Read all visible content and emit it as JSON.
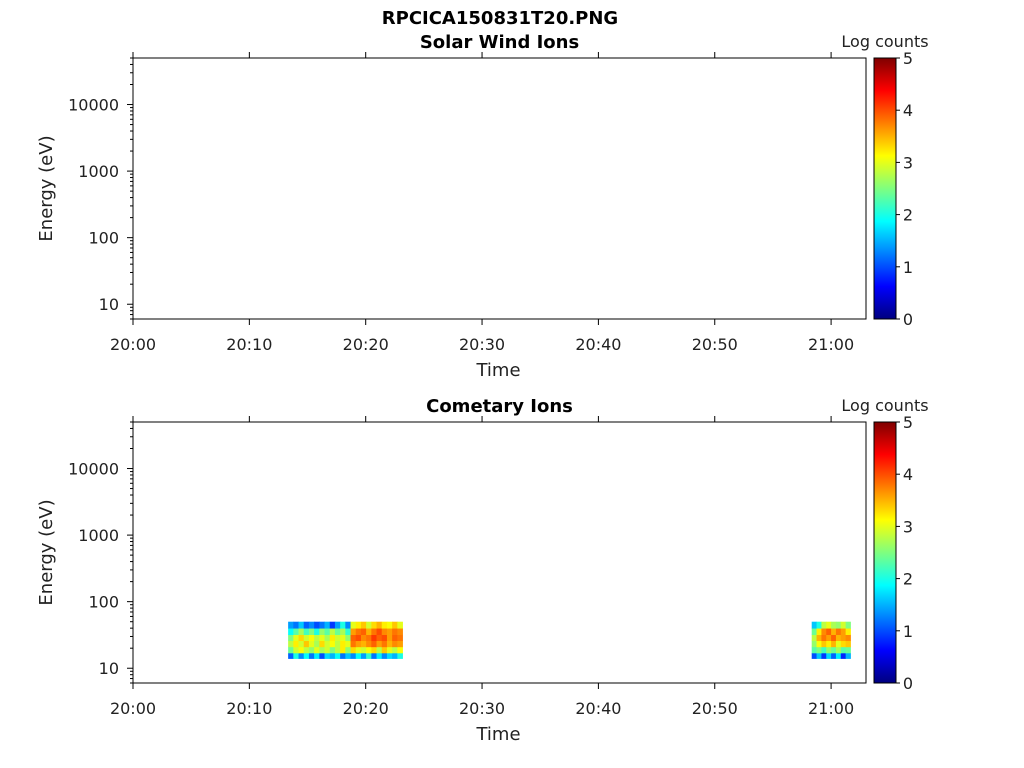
{
  "figure": {
    "title": "RPCICA150831T20.PNG"
  },
  "colors": {
    "colormap": "jet",
    "colormap_stops": [
      "#00007f",
      "#0000ff",
      "#007fff",
      "#00ffff",
      "#7fff7f",
      "#ffff00",
      "#ff7f00",
      "#ff0000",
      "#7f0000"
    ]
  },
  "chart_data": [
    {
      "type": "heatmap",
      "title": "Solar Wind Ions",
      "xlabel": "Time",
      "ylabel": "Energy (eV)",
      "y_scale": "log",
      "xlim": [
        "20:00",
        "21:03"
      ],
      "ylim": [
        6,
        50000
      ],
      "x_ticks": [
        "20:00",
        "20:10",
        "20:20",
        "20:30",
        "20:40",
        "20:50",
        "21:00"
      ],
      "y_ticks": [
        "10",
        "100",
        "1000",
        "10000"
      ],
      "colorbar": {
        "label": "Log counts",
        "range": [
          0,
          5
        ],
        "ticks": [
          "0",
          "1",
          "2",
          "3",
          "4",
          "5"
        ]
      },
      "blocks": []
    },
    {
      "type": "heatmap",
      "title": "Cometary Ions",
      "xlabel": "Time",
      "ylabel": "Energy (eV)",
      "y_scale": "log",
      "xlim": [
        "20:00",
        "21:03"
      ],
      "ylim": [
        6,
        50000
      ],
      "x_ticks": [
        "20:00",
        "20:10",
        "20:20",
        "20:30",
        "20:40",
        "20:50",
        "21:00"
      ],
      "y_ticks": [
        "10",
        "100",
        "1000",
        "10000"
      ],
      "colorbar": {
        "label": "Log counts",
        "range": [
          0,
          5
        ],
        "ticks": [
          "0",
          "1",
          "2",
          "3",
          "4",
          "5"
        ]
      },
      "blocks": [
        {
          "time_start": "20:13:20",
          "time_end": "20:23:10",
          "energy_bins": [
            14,
            17,
            21,
            26,
            32,
            40,
            50
          ],
          "log_counts": [
            [
              1.1,
              2.0,
              1.3,
              1.9,
              1.2,
              1.8,
              1.0,
              1.7,
              1.5,
              1.9,
              1.2,
              1.6,
              1.3,
              1.9,
              1.4,
              2.1,
              1.2,
              1.8,
              1.3,
              1.7,
              1.5,
              2.0
            ],
            [
              2.4,
              2.9,
              3.1,
              2.8,
              2.6,
              3.0,
              2.7,
              2.9,
              2.5,
              2.8,
              3.2,
              2.6,
              3.3,
              3.0,
              2.9,
              3.1,
              3.3,
              2.8,
              3.4,
              3.0,
              2.8,
              3.1
            ],
            [
              2.8,
              3.2,
              2.9,
              3.4,
              3.0,
              2.7,
              3.3,
              2.9,
              3.1,
              2.8,
              3.2,
              3.0,
              3.8,
              3.6,
              3.5,
              3.7,
              3.9,
              3.6,
              3.8,
              3.5,
              3.7,
              3.6
            ],
            [
              2.5,
              3.0,
              3.3,
              2.9,
              3.1,
              2.8,
              3.0,
              2.7,
              3.2,
              2.9,
              3.0,
              2.6,
              3.9,
              4.0,
              3.7,
              3.8,
              4.1,
              3.9,
              4.0,
              3.6,
              3.9,
              3.8
            ],
            [
              1.9,
              2.3,
              2.7,
              2.2,
              2.5,
              2.0,
              2.6,
              2.3,
              2.8,
              2.4,
              2.7,
              2.1,
              3.6,
              3.8,
              3.9,
              3.5,
              3.8,
              4.0,
              3.7,
              3.6,
              3.8,
              3.7
            ],
            [
              1.4,
              1.2,
              1.6,
              1.1,
              1.3,
              1.0,
              1.2,
              1.5,
              0.9,
              1.4,
              2.0,
              1.3,
              3.0,
              3.2,
              3.4,
              2.9,
              3.3,
              3.5,
              3.2,
              3.1,
              3.4,
              3.0
            ]
          ]
        },
        {
          "time_start": "20:58:20",
          "time_end": "21:01:40",
          "energy_bins": [
            14,
            17,
            21,
            26,
            32,
            40,
            50
          ],
          "log_counts": [
            [
              1.0,
              1.6,
              0.9,
              1.7,
              1.1,
              1.8,
              0.8,
              1.5
            ],
            [
              2.3,
              2.5,
              2.2,
              2.6,
              2.4,
              2.7,
              2.3,
              2.4
            ],
            [
              2.6,
              3.1,
              3.4,
              3.2,
              3.5,
              3.0,
              3.3,
              3.4
            ],
            [
              2.8,
              3.5,
              3.8,
              3.6,
              3.9,
              3.5,
              3.6,
              3.7
            ],
            [
              2.4,
              3.2,
              3.7,
              3.9,
              3.5,
              3.8,
              3.6,
              3.2
            ],
            [
              1.6,
              2.0,
              2.8,
              3.0,
              2.7,
              2.6,
              2.9,
              2.5
            ]
          ]
        }
      ]
    }
  ]
}
